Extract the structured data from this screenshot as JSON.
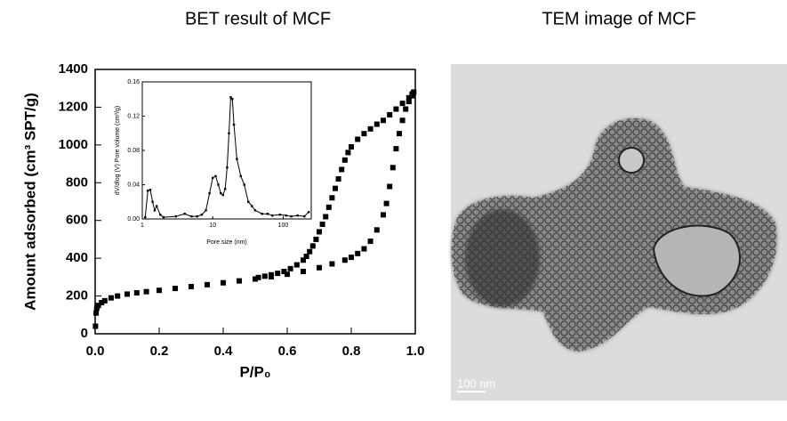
{
  "chart_data": [
    {
      "type": "scatter",
      "title": "BET result of MCF",
      "x_label": "P/P₀",
      "y_label": "Amount adsorbed (cm³ SPT/g)",
      "xlim": [
        0,
        1
      ],
      "ylim": [
        0,
        1400
      ],
      "xticks": [
        {
          "value": 0,
          "label": "0.0"
        },
        0.2,
        0.4,
        0.6,
        0.8,
        {
          "value": 1,
          "label": "1.0"
        }
      ],
      "yticks": [
        0,
        200,
        400,
        600,
        800,
        1000,
        1200,
        1400
      ],
      "series": [
        {
          "color": "#000000",
          "x": [
            0.001,
            0.003,
            0.005,
            0.01,
            0.02,
            0.03,
            0.05,
            0.07,
            0.1,
            0.13,
            0.16,
            0.2,
            0.25,
            0.3,
            0.35,
            0.4,
            0.45,
            0.5,
            0.55,
            0.6,
            0.65,
            0.7,
            0.74,
            0.78,
            0.8,
            0.82,
            0.84,
            0.86,
            0.88,
            0.9,
            0.91,
            0.92,
            0.93,
            0.94,
            0.95,
            0.96,
            0.97,
            0.98,
            0.99,
            0.995
          ],
          "values": [
            40,
            110,
            135,
            150,
            165,
            175,
            190,
            200,
            210,
            217,
            223,
            230,
            240,
            250,
            260,
            270,
            280,
            290,
            302,
            315,
            330,
            350,
            370,
            390,
            405,
            425,
            450,
            490,
            550,
            630,
            690,
            780,
            880,
            980,
            1060,
            1130,
            1190,
            1230,
            1260,
            1280
          ]
        },
        {
          "color": "#000000",
          "x": [
            0.995,
            0.99,
            0.98,
            0.96,
            0.94,
            0.92,
            0.9,
            0.88,
            0.86,
            0.84,
            0.82,
            0.8,
            0.79,
            0.78,
            0.77,
            0.76,
            0.75,
            0.74,
            0.73,
            0.72,
            0.71,
            0.7,
            0.69,
            0.68,
            0.67,
            0.66,
            0.65,
            0.63,
            0.61,
            0.59,
            0.57,
            0.55,
            0.53,
            0.51
          ],
          "values": [
            1280,
            1270,
            1250,
            1220,
            1190,
            1160,
            1130,
            1110,
            1085,
            1060,
            1030,
            990,
            960,
            920,
            870,
            820,
            770,
            720,
            670,
            620,
            580,
            540,
            500,
            465,
            435,
            410,
            390,
            365,
            345,
            330,
            320,
            312,
            305,
            298
          ]
        }
      ]
    },
    {
      "type": "line",
      "x_label": "Pore size (nm)",
      "y_label": "dV/dlog (V) Pore volume (cm³/g)",
      "log_x": true,
      "xlim": [
        1,
        250
      ],
      "ylim": [
        0,
        0.16
      ],
      "xticks": [
        1,
        10,
        100
      ],
      "yticks": [
        {
          "value": 0,
          "label": "0.00"
        },
        0.04,
        0.08,
        0.12,
        0.16
      ],
      "series": [
        {
          "color": "#000000",
          "x": [
            1.1,
            1.2,
            1.3,
            1.4,
            1.5,
            1.6,
            1.8,
            2,
            3,
            4,
            5,
            6,
            7,
            8,
            9,
            10,
            11,
            12,
            13,
            14,
            15,
            16,
            17,
            18,
            19,
            20,
            22,
            25,
            28,
            32,
            36,
            40,
            50,
            60,
            70,
            90,
            110,
            130,
            160,
            200,
            230
          ],
          "values": [
            0.002,
            0.033,
            0.034,
            0.02,
            0.01,
            0.015,
            0.005,
            0.002,
            0.003,
            0.006,
            0.003,
            0.003,
            0.005,
            0.01,
            0.03,
            0.048,
            0.05,
            0.04,
            0.03,
            0.028,
            0.035,
            0.06,
            0.1,
            0.142,
            0.14,
            0.11,
            0.07,
            0.05,
            0.04,
            0.02,
            0.015,
            0.01,
            0.006,
            0.006,
            0.004,
            0.005,
            0.004,
            0.003,
            0.004,
            0.003,
            0.008
          ]
        }
      ]
    }
  ],
  "image": {
    "title": "TEM image of MCF",
    "scale_bar": "100 nm"
  }
}
